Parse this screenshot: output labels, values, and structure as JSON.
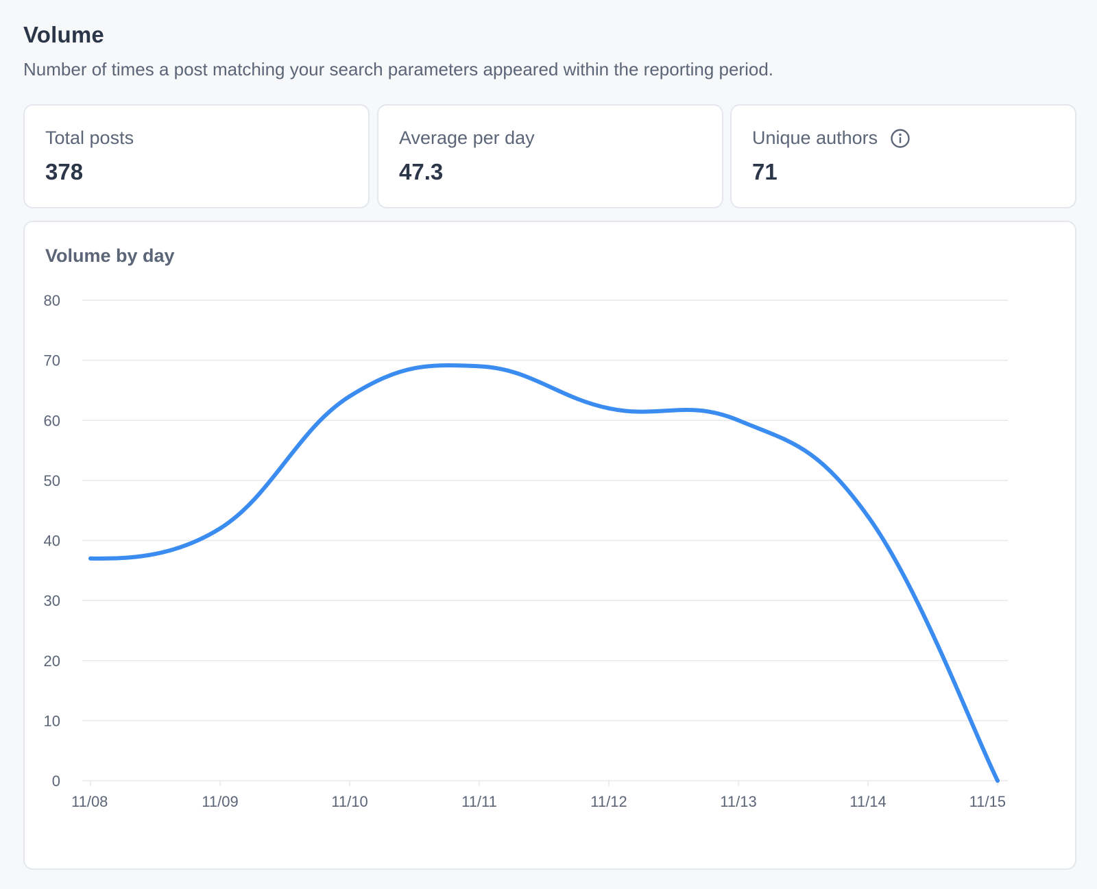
{
  "header": {
    "title": "Volume",
    "description": "Number of times a post matching your search parameters appeared within the reporting period."
  },
  "stats": [
    {
      "label": "Total posts",
      "value": "378"
    },
    {
      "label": "Average per day",
      "value": "47.3"
    },
    {
      "label": "Unique authors",
      "value": "71",
      "icon": "info-icon"
    }
  ],
  "chart_title": "Volume by day",
  "colors": {
    "line": "#3b8cf0",
    "grid": "#e6e8ec",
    "axis_text": "#5b6577"
  },
  "chart_data": {
    "type": "line",
    "title": "Volume by day",
    "xlabel": "",
    "ylabel": "",
    "x": [
      "11/08",
      "11/09",
      "11/10",
      "11/11",
      "11/12",
      "11/13",
      "11/14",
      "11/15"
    ],
    "series": [
      {
        "values": [
          37,
          42,
          64,
          69,
          62,
          60,
          44,
          0
        ]
      }
    ],
    "ylim": [
      0,
      80
    ],
    "yticks": [
      0,
      10,
      20,
      30,
      40,
      50,
      60,
      70,
      80
    ],
    "grid": true,
    "smooth": true
  }
}
